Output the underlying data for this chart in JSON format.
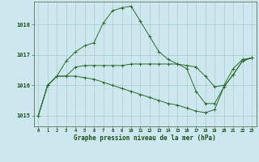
{
  "bg_color": "#cce8ee",
  "grid_color": "#aacccc",
  "line_color": "#2d6a2d",
  "marker_color": "#2d6a2d",
  "xlabel": "Graphe pression niveau de la mer (hPa)",
  "xlabel_color": "#1a4d1a",
  "ytick_labels": [
    "1015",
    "1016",
    "1017",
    "1018"
  ],
  "ytick_values": [
    1015,
    1016,
    1017,
    1018
  ],
  "xtick_values": [
    0,
    1,
    2,
    3,
    4,
    5,
    6,
    7,
    8,
    9,
    10,
    11,
    12,
    13,
    14,
    15,
    16,
    17,
    18,
    19,
    20,
    21,
    22,
    23
  ],
  "ylim": [
    1014.65,
    1018.75
  ],
  "xlim": [
    -0.5,
    23.5
  ],
  "series": [
    [
      1015.0,
      1016.0,
      1016.3,
      1016.8,
      1017.1,
      1017.3,
      1017.4,
      1018.05,
      1018.45,
      1018.55,
      1018.6,
      1018.1,
      1017.6,
      1017.1,
      1016.85,
      1016.7,
      1016.55,
      1015.8,
      1015.4,
      1015.4,
      1015.95,
      1016.35,
      1016.8,
      1016.9
    ],
    [
      1015.0,
      1016.0,
      1016.3,
      1016.3,
      1016.6,
      1016.65,
      1016.65,
      1016.65,
      1016.65,
      1016.65,
      1016.7,
      1016.7,
      1016.7,
      1016.7,
      1016.7,
      1016.7,
      1016.65,
      1016.6,
      1016.3,
      1015.95,
      1016.0,
      1016.55,
      1016.85,
      1016.9
    ],
    [
      1015.0,
      1016.0,
      1016.3,
      1016.3,
      1016.3,
      1016.25,
      1016.2,
      1016.1,
      1016.0,
      1015.9,
      1015.8,
      1015.7,
      1015.6,
      1015.5,
      1015.4,
      1015.35,
      1015.25,
      1015.15,
      1015.1,
      1015.2,
      1015.95,
      1016.35,
      1016.8,
      1016.9
    ]
  ]
}
